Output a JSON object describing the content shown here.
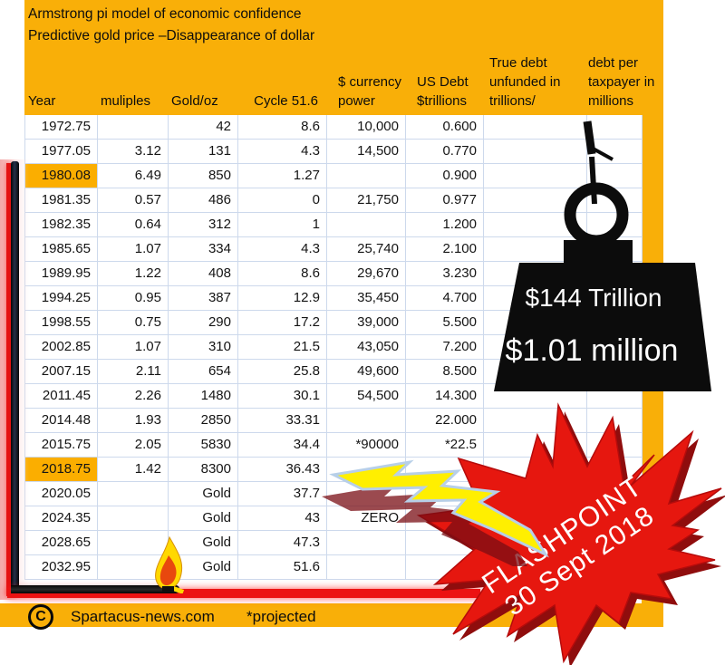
{
  "titles": {
    "line1": "Armstrong pi model of economic confidence",
    "line2": "Predictive gold price –Disappearance of dollar"
  },
  "table": {
    "columns": [
      {
        "key": "year",
        "label": "Year"
      },
      {
        "key": "muliples",
        "label": "muliples"
      },
      {
        "key": "gold",
        "label": "Gold/oz"
      },
      {
        "key": "cycle",
        "label": "Cycle 51.6"
      },
      {
        "key": "currency",
        "label": "$ currency\npower"
      },
      {
        "key": "usdebt",
        "label": "US Debt\n$trillions"
      },
      {
        "key": "truedebt",
        "label": "True debt\nunfunded in\ntrillions/"
      },
      {
        "key": "taxpayer",
        "label": "debt per\ntaxpayer in\nmillions"
      }
    ],
    "rows": [
      {
        "year": "1972.75",
        "muliples": "",
        "gold": "42",
        "cycle": "8.6",
        "currency": "10,000",
        "usdebt": "0.600",
        "truedebt": "",
        "taxpayer": "",
        "highlight": false
      },
      {
        "year": "1977.05",
        "muliples": "3.12",
        "gold": "131",
        "cycle": "4.3",
        "currency": "14,500",
        "usdebt": "0.770",
        "truedebt": "",
        "taxpayer": "",
        "highlight": false
      },
      {
        "year": "1980.08",
        "muliples": "6.49",
        "gold": "850",
        "cycle": "1.27",
        "currency": "",
        "usdebt": "0.900",
        "truedebt": "",
        "taxpayer": "",
        "highlight": true
      },
      {
        "year": "1981.35",
        "muliples": "0.57",
        "gold": "486",
        "cycle": "0",
        "currency": "21,750",
        "usdebt": "0.977",
        "truedebt": "",
        "taxpayer": "",
        "highlight": false
      },
      {
        "year": "1982.35",
        "muliples": "0.64",
        "gold": "312",
        "cycle": "1",
        "currency": "",
        "usdebt": "1.200",
        "truedebt": "",
        "taxpayer": "",
        "highlight": false
      },
      {
        "year": "1985.65",
        "muliples": "1.07",
        "gold": "334",
        "cycle": "4.3",
        "currency": "25,740",
        "usdebt": "2.100",
        "truedebt": "",
        "taxpayer": "",
        "highlight": false
      },
      {
        "year": "1989.95",
        "muliples": "1.22",
        "gold": "408",
        "cycle": "8.6",
        "currency": "29,670",
        "usdebt": "3.230",
        "truedebt": "",
        "taxpayer": "",
        "highlight": false
      },
      {
        "year": "1994.25",
        "muliples": "0.95",
        "gold": "387",
        "cycle": "12.9",
        "currency": "35,450",
        "usdebt": "4.700",
        "truedebt": "",
        "taxpayer": "",
        "highlight": false
      },
      {
        "year": "1998.55",
        "muliples": "0.75",
        "gold": "290",
        "cycle": "17.2",
        "currency": "39,000",
        "usdebt": "5.500",
        "truedebt": "",
        "taxpayer": "",
        "highlight": false
      },
      {
        "year": "2002.85",
        "muliples": "1.07",
        "gold": "310",
        "cycle": "21.5",
        "currency": "43,050",
        "usdebt": "7.200",
        "truedebt": "",
        "taxpayer": "",
        "highlight": false
      },
      {
        "year": "2007.15",
        "muliples": "2.11",
        "gold": "654",
        "cycle": "25.8",
        "currency": "49,600",
        "usdebt": "8.500",
        "truedebt": "",
        "taxpayer": "",
        "highlight": false
      },
      {
        "year": "2011.45",
        "muliples": "2.26",
        "gold": "1480",
        "cycle": "30.1",
        "currency": "54,500",
        "usdebt": "14.300",
        "truedebt": "",
        "taxpayer": "",
        "highlight": false
      },
      {
        "year": "2014.48",
        "muliples": "1.93",
        "gold": "2850",
        "cycle": "33.31",
        "currency": "",
        "usdebt": "22.000",
        "truedebt": "",
        "taxpayer": "",
        "highlight": false
      },
      {
        "year": "2015.75",
        "muliples": "2.05",
        "gold": "5830",
        "cycle": "34.4",
        "currency": "*90000",
        "usdebt": "*22.5",
        "truedebt": "",
        "taxpayer": "",
        "highlight": false
      },
      {
        "year": "2018.75",
        "muliples": "1.42",
        "gold": "8300",
        "cycle": "36.43",
        "currency": "",
        "usdebt": "",
        "truedebt": "",
        "taxpayer": "",
        "highlight": true
      },
      {
        "year": "2020.05",
        "muliples": "",
        "gold": "Gold",
        "cycle": "37.7",
        "currency": "",
        "usdebt": "",
        "truedebt": "",
        "taxpayer": "",
        "highlight": false
      },
      {
        "year": "2024.35",
        "muliples": "",
        "gold": "Gold",
        "cycle": "43",
        "currency": "ZERO",
        "usdebt": "",
        "truedebt": "",
        "taxpayer": "",
        "highlight": false
      },
      {
        "year": "2028.65",
        "muliples": "",
        "gold": "Gold",
        "cycle": "47.3",
        "currency": "",
        "usdebt": "",
        "truedebt": "",
        "taxpayer": "",
        "highlight": false
      },
      {
        "year": "2032.95",
        "muliples": "",
        "gold": "Gold",
        "cycle": "51.6",
        "currency": "",
        "usdebt": "",
        "truedebt": "",
        "taxpayer": "",
        "highlight": false
      }
    ],
    "highlighted_years": [
      "1980.08",
      "2018.75"
    ]
  },
  "weight": {
    "line1": "$144 Trillion",
    "line2": "$1.01 million"
  },
  "burst": {
    "line1": "FLASHPOINT",
    "line2": "30 Sept 2018"
  },
  "footer": {
    "copyright": "C",
    "site": "Spartacus-news.com",
    "note": "*projected"
  },
  "colors": {
    "orange": "#F9AF08",
    "cell_highlight": "#FBAE00",
    "gridline": "#CDD9EC",
    "red_band": "#EC1212",
    "burst_red": "#E6170F",
    "burst_shadow": "#8F0D0D",
    "bolt_yellow": "#FFEF00",
    "bolt_outline": "#B7CFE8",
    "weight_black": "#0C0C0C",
    "text": "#141414",
    "weight_text": "#FFFFFF",
    "burst_text": "#FFFFFF"
  },
  "chart_data": {
    "type": "table",
    "title": "Armstrong pi model of economic confidence",
    "subtitle": "Predictive gold price –Disappearance of dollar",
    "categories": [
      "1972.75",
      "1977.05",
      "1980.08",
      "1981.35",
      "1982.35",
      "1985.65",
      "1989.95",
      "1994.25",
      "1998.55",
      "2002.85",
      "2007.15",
      "2011.45",
      "2014.48",
      "2015.75",
      "2018.75",
      "2020.05",
      "2024.35",
      "2028.65",
      "2032.95"
    ],
    "series": [
      {
        "name": "muliples",
        "values": [
          null,
          3.12,
          6.49,
          0.57,
          0.64,
          1.07,
          1.22,
          0.95,
          0.75,
          1.07,
          2.11,
          2.26,
          1.93,
          2.05,
          1.42,
          null,
          null,
          null,
          null
        ]
      },
      {
        "name": "Gold/oz",
        "values": [
          42,
          131,
          850,
          486,
          312,
          334,
          408,
          387,
          290,
          310,
          654,
          1480,
          2850,
          5830,
          8300,
          "Gold",
          "Gold",
          "Gold",
          "Gold"
        ]
      },
      {
        "name": "Cycle 51.6",
        "values": [
          8.6,
          4.3,
          1.27,
          0,
          1,
          4.3,
          8.6,
          12.9,
          17.2,
          21.5,
          25.8,
          30.1,
          33.31,
          34.4,
          36.43,
          37.7,
          43,
          47.3,
          51.6
        ]
      },
      {
        "name": "$ currency power",
        "values": [
          10000,
          14500,
          null,
          21750,
          null,
          25740,
          29670,
          35450,
          39000,
          43050,
          49600,
          54500,
          null,
          "*90000",
          null,
          null,
          "ZERO",
          null,
          null
        ]
      },
      {
        "name": "US Debt $trillions",
        "values": [
          0.6,
          0.77,
          0.9,
          0.977,
          1.2,
          2.1,
          3.23,
          4.7,
          5.5,
          7.2,
          8.5,
          14.3,
          22.0,
          "*22.5",
          null,
          null,
          null,
          null,
          null
        ]
      }
    ],
    "annotations": [
      "$144 Trillion",
      "$1.01 million",
      "FLASHPOINT 30 Sept 2018",
      "*projected"
    ]
  }
}
